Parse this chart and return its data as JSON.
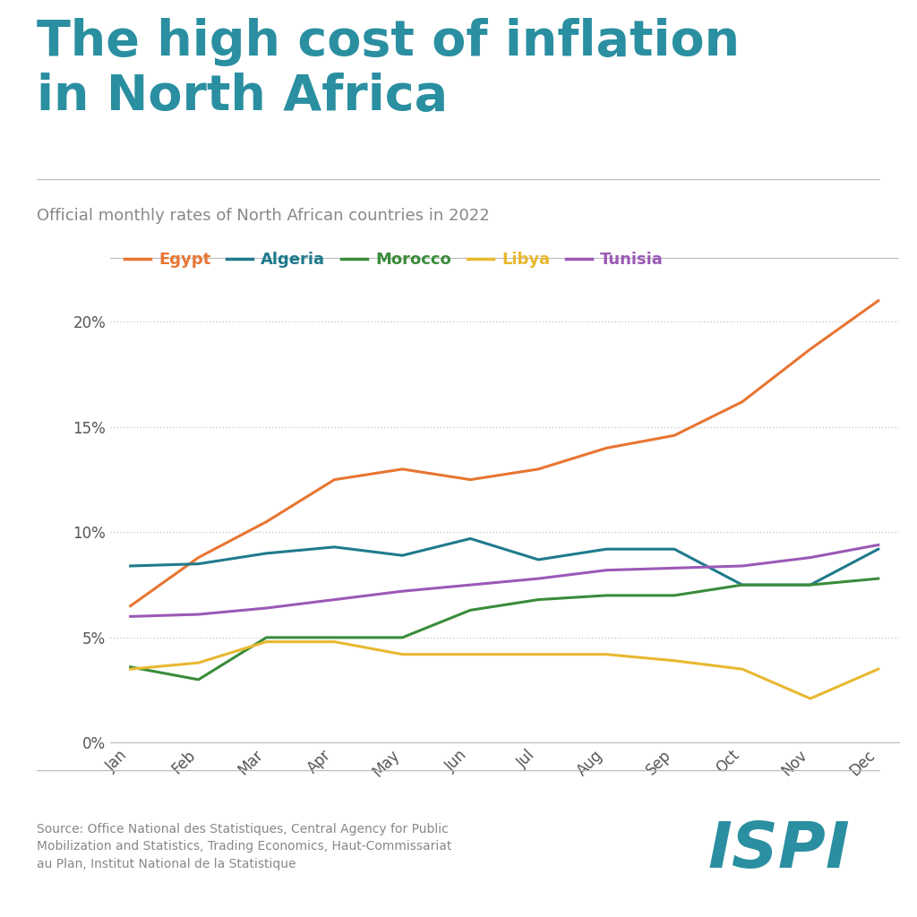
{
  "title_line1": "The high cost of inflation",
  "title_line2": "in North Africa",
  "subtitle": "Official monthly rates of North African countries in 2022",
  "title_color": "#2a8fa0",
  "subtitle_color": "#888888",
  "source_text": "Source: Office National des Statistiques, Central Agency for Public\nMobilization and Statistics, Trading Economics, Haut-Commissariat\nau Plan, Institut National de la Statistique",
  "months": [
    "Jan",
    "Feb",
    "Mar",
    "Apr",
    "May",
    "Jun",
    "Jul",
    "Aug",
    "Sep",
    "Oct",
    "Nov",
    "Dec"
  ],
  "series": [
    {
      "name": "Egypt",
      "color": "#e87532",
      "values": [
        6.5,
        8.8,
        10.5,
        12.5,
        13.0,
        12.5,
        13.0,
        14.0,
        14.6,
        16.2,
        18.7,
        21.0
      ]
    },
    {
      "name": "Algeria",
      "color": "#1f7a8c",
      "values": [
        8.4,
        8.5,
        9.0,
        9.3,
        8.9,
        9.7,
        8.7,
        9.2,
        9.2,
        7.5,
        7.5,
        9.2
      ]
    },
    {
      "name": "Morocco",
      "color": "#3a8c3a",
      "values": [
        3.6,
        3.0,
        5.0,
        5.0,
        5.0,
        6.3,
        6.8,
        7.0,
        7.0,
        7.5,
        7.5,
        7.8
      ]
    },
    {
      "name": "Libya",
      "color": "#e8b830",
      "values": [
        3.5,
        3.8,
        4.8,
        4.8,
        4.2,
        4.2,
        4.2,
        4.2,
        3.9,
        3.5,
        2.1,
        3.5
      ]
    },
    {
      "name": "Tunisia",
      "color": "#9b59b6",
      "values": [
        6.0,
        6.1,
        6.4,
        6.8,
        7.2,
        7.5,
        7.8,
        8.2,
        8.3,
        8.4,
        8.8,
        9.4
      ]
    }
  ],
  "ylim": [
    0,
    22
  ],
  "yticks": [
    0,
    5,
    10,
    15,
    20
  ],
  "ytick_labels": [
    "0%",
    "5%",
    "10%",
    "15%",
    "20%"
  ],
  "background_color": "#ffffff",
  "grid_color": "#cccccc",
  "ispi_color": "#2a8fa0"
}
